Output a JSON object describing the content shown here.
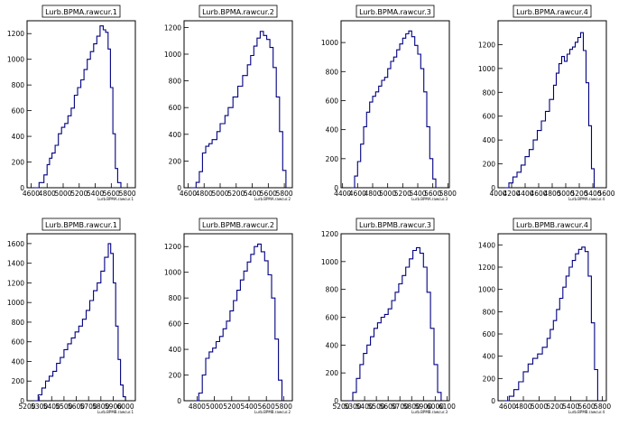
{
  "chart_data": [
    {
      "type": "histogram",
      "title": "Lurb.BPMA.rawcur.1",
      "xlabel": "Lurb.BPMA.rawcur.1",
      "xlim": [
        4550,
        5900
      ],
      "ylim": [
        0,
        1300
      ],
      "xticks": [
        4600,
        4800,
        5000,
        5200,
        5400,
        5600,
        5800
      ],
      "yticks": [
        0,
        200,
        400,
        600,
        800,
        1000,
        1200
      ],
      "x": [
        4640,
        4700,
        4760,
        4800,
        4830,
        4860,
        4900,
        4940,
        4980,
        5020,
        5060,
        5100,
        5140,
        5180,
        5220,
        5260,
        5300,
        5340,
        5380,
        5420,
        5460,
        5500,
        5530,
        5560,
        5590,
        5620,
        5650,
        5680,
        5720
      ],
      "values": [
        0,
        40,
        100,
        180,
        230,
        270,
        330,
        420,
        470,
        500,
        560,
        620,
        720,
        780,
        840,
        920,
        1000,
        1060,
        1120,
        1180,
        1260,
        1230,
        1210,
        1080,
        780,
        420,
        150,
        40,
        0
      ]
    },
    {
      "type": "histogram",
      "title": "Lurb.BPMA.rawcur.2",
      "xlabel": "Lurb.BPMA.rawcur.2",
      "xlim": [
        4550,
        5900
      ],
      "ylim": [
        0,
        1250
      ],
      "xticks": [
        4600,
        4800,
        5000,
        5200,
        5400,
        5600,
        5800
      ],
      "yticks": [
        0,
        200,
        400,
        600,
        800,
        1000,
        1200
      ],
      "x": [
        4640,
        4700,
        4740,
        4780,
        4820,
        4860,
        4900,
        4960,
        5000,
        5060,
        5100,
        5160,
        5220,
        5280,
        5340,
        5380,
        5420,
        5460,
        5500,
        5540,
        5580,
        5620,
        5660,
        5700,
        5740,
        5780,
        5820
      ],
      "values": [
        0,
        40,
        120,
        260,
        310,
        330,
        360,
        420,
        480,
        540,
        600,
        680,
        760,
        840,
        920,
        990,
        1060,
        1120,
        1170,
        1140,
        1110,
        1050,
        900,
        680,
        420,
        130,
        0
      ]
    },
    {
      "type": "histogram",
      "title": "Lurb.BPMA.rawcur.3",
      "xlabel": "Lurb.BPMA.rawcur.3",
      "xlim": [
        4380,
        5820
      ],
      "ylim": [
        0,
        1150
      ],
      "xticks": [
        4400,
        4600,
        4800,
        5000,
        5200,
        5400,
        5600,
        5800
      ],
      "yticks": [
        0,
        200,
        400,
        600,
        800,
        1000
      ],
      "x": [
        4520,
        4560,
        4600,
        4640,
        4680,
        4720,
        4760,
        4800,
        4840,
        4880,
        4920,
        4960,
        5000,
        5040,
        5080,
        5120,
        5160,
        5200,
        5240,
        5280,
        5320,
        5360,
        5400,
        5440,
        5480,
        5520,
        5560,
        5600,
        5640
      ],
      "values": [
        0,
        80,
        180,
        300,
        420,
        520,
        590,
        630,
        660,
        700,
        740,
        760,
        820,
        870,
        900,
        950,
        990,
        1030,
        1060,
        1080,
        1040,
        980,
        920,
        820,
        660,
        420,
        200,
        60,
        0
      ]
    },
    {
      "type": "histogram",
      "title": "Lurb.BPMA.rawcur.4",
      "xlabel": "Lurb.BPMA.rawcur.4",
      "xlim": [
        4000,
        5600
      ],
      "ylim": [
        0,
        1400
      ],
      "xticks": [
        4000,
        4200,
        4400,
        4600,
        4800,
        5000,
        5200,
        5400,
        5600
      ],
      "yticks": [
        0,
        200,
        400,
        600,
        800,
        1000,
        1200
      ],
      "x": [
        4100,
        4160,
        4220,
        4280,
        4340,
        4400,
        4460,
        4520,
        4580,
        4640,
        4700,
        4760,
        4820,
        4860,
        4900,
        4940,
        4980,
        5020,
        5060,
        5100,
        5140,
        5180,
        5220,
        5260,
        5300,
        5340,
        5380,
        5420
      ],
      "values": [
        0,
        40,
        90,
        130,
        190,
        260,
        320,
        400,
        480,
        560,
        640,
        740,
        860,
        960,
        1040,
        1100,
        1060,
        1120,
        1160,
        1180,
        1220,
        1260,
        1300,
        1150,
        880,
        520,
        160,
        0
      ]
    },
    {
      "type": "histogram",
      "title": "Lurb.BPMB.rawcur.1",
      "xlabel": "Lurb.BPMB.rawcur.1",
      "xlim": [
        5200,
        6080
      ],
      "ylim": [
        0,
        1700
      ],
      "xticks": [
        5200,
        5300,
        5400,
        5500,
        5600,
        5700,
        5800,
        5900,
        6000
      ],
      "yticks": [
        0,
        200,
        400,
        600,
        800,
        1000,
        1200,
        1400,
        1600
      ],
      "x": [
        5260,
        5290,
        5320,
        5350,
        5380,
        5410,
        5440,
        5470,
        5500,
        5530,
        5560,
        5590,
        5620,
        5650,
        5680,
        5710,
        5740,
        5770,
        5800,
        5830,
        5860,
        5880,
        5900,
        5920,
        5940,
        5960,
        5980,
        6000
      ],
      "values": [
        0,
        60,
        130,
        200,
        250,
        300,
        380,
        440,
        520,
        580,
        640,
        700,
        760,
        830,
        920,
        1020,
        1120,
        1200,
        1320,
        1460,
        1600,
        1500,
        1200,
        760,
        420,
        160,
        40,
        0
      ]
    },
    {
      "type": "histogram",
      "title": "Lurb.BPMB.rawcur.2",
      "xlabel": "Lurb.BPMB.rawcur.2",
      "xlim": [
        4650,
        5900
      ],
      "ylim": [
        0,
        1300
      ],
      "xticks": [
        4800,
        5000,
        5200,
        5400,
        5600,
        5800
      ],
      "yticks": [
        0,
        200,
        400,
        600,
        800,
        1000,
        1200
      ],
      "x": [
        4780,
        4820,
        4860,
        4900,
        4940,
        4980,
        5020,
        5060,
        5100,
        5140,
        5180,
        5220,
        5260,
        5300,
        5340,
        5380,
        5420,
        5460,
        5500,
        5540,
        5580,
        5620,
        5660,
        5700,
        5740,
        5780
      ],
      "values": [
        0,
        60,
        200,
        330,
        380,
        410,
        460,
        500,
        560,
        620,
        700,
        780,
        860,
        940,
        1010,
        1080,
        1140,
        1200,
        1220,
        1160,
        1090,
        980,
        800,
        480,
        160,
        0
      ]
    },
    {
      "type": "histogram",
      "title": "Lurb.BPMB.rawcur.3",
      "xlabel": "Lurb.BPMB.rawcur.3",
      "xlim": [
        5200,
        6120
      ],
      "ylim": [
        0,
        1200
      ],
      "xticks": [
        5200,
        5300,
        5400,
        5500,
        5600,
        5700,
        5800,
        5900,
        6000,
        6100
      ],
      "yticks": [
        0,
        200,
        400,
        600,
        800,
        1000,
        1200
      ],
      "x": [
        5270,
        5300,
        5330,
        5360,
        5390,
        5420,
        5450,
        5480,
        5510,
        5540,
        5570,
        5600,
        5630,
        5660,
        5690,
        5720,
        5750,
        5780,
        5810,
        5840,
        5870,
        5900,
        5930,
        5960,
        5990,
        6020,
        6050
      ],
      "values": [
        0,
        60,
        160,
        260,
        340,
        400,
        460,
        520,
        560,
        600,
        620,
        660,
        720,
        780,
        840,
        900,
        960,
        1020,
        1080,
        1100,
        1060,
        960,
        780,
        520,
        260,
        60,
        0
      ]
    },
    {
      "type": "histogram",
      "title": "Lurb.BPMB.rawcur.4",
      "xlabel": "Lurb.BPMB.rawcur.4",
      "xlim": [
        4480,
        5850
      ],
      "ylim": [
        0,
        1500
      ],
      "xticks": [
        4600,
        4800,
        5000,
        5200,
        5400,
        5600,
        5800
      ],
      "yticks": [
        0,
        200,
        400,
        600,
        800,
        1000,
        1200,
        1400
      ],
      "x": [
        4560,
        4620,
        4680,
        4740,
        4800,
        4860,
        4920,
        4980,
        5040,
        5100,
        5140,
        5180,
        5220,
        5260,
        5300,
        5340,
        5380,
        5420,
        5460,
        5500,
        5540,
        5580,
        5620,
        5660,
        5700,
        5740
      ],
      "values": [
        0,
        40,
        100,
        170,
        260,
        330,
        380,
        420,
        480,
        560,
        640,
        720,
        820,
        920,
        1020,
        1120,
        1200,
        1260,
        1320,
        1360,
        1380,
        1340,
        1120,
        700,
        280,
        0
      ]
    }
  ]
}
